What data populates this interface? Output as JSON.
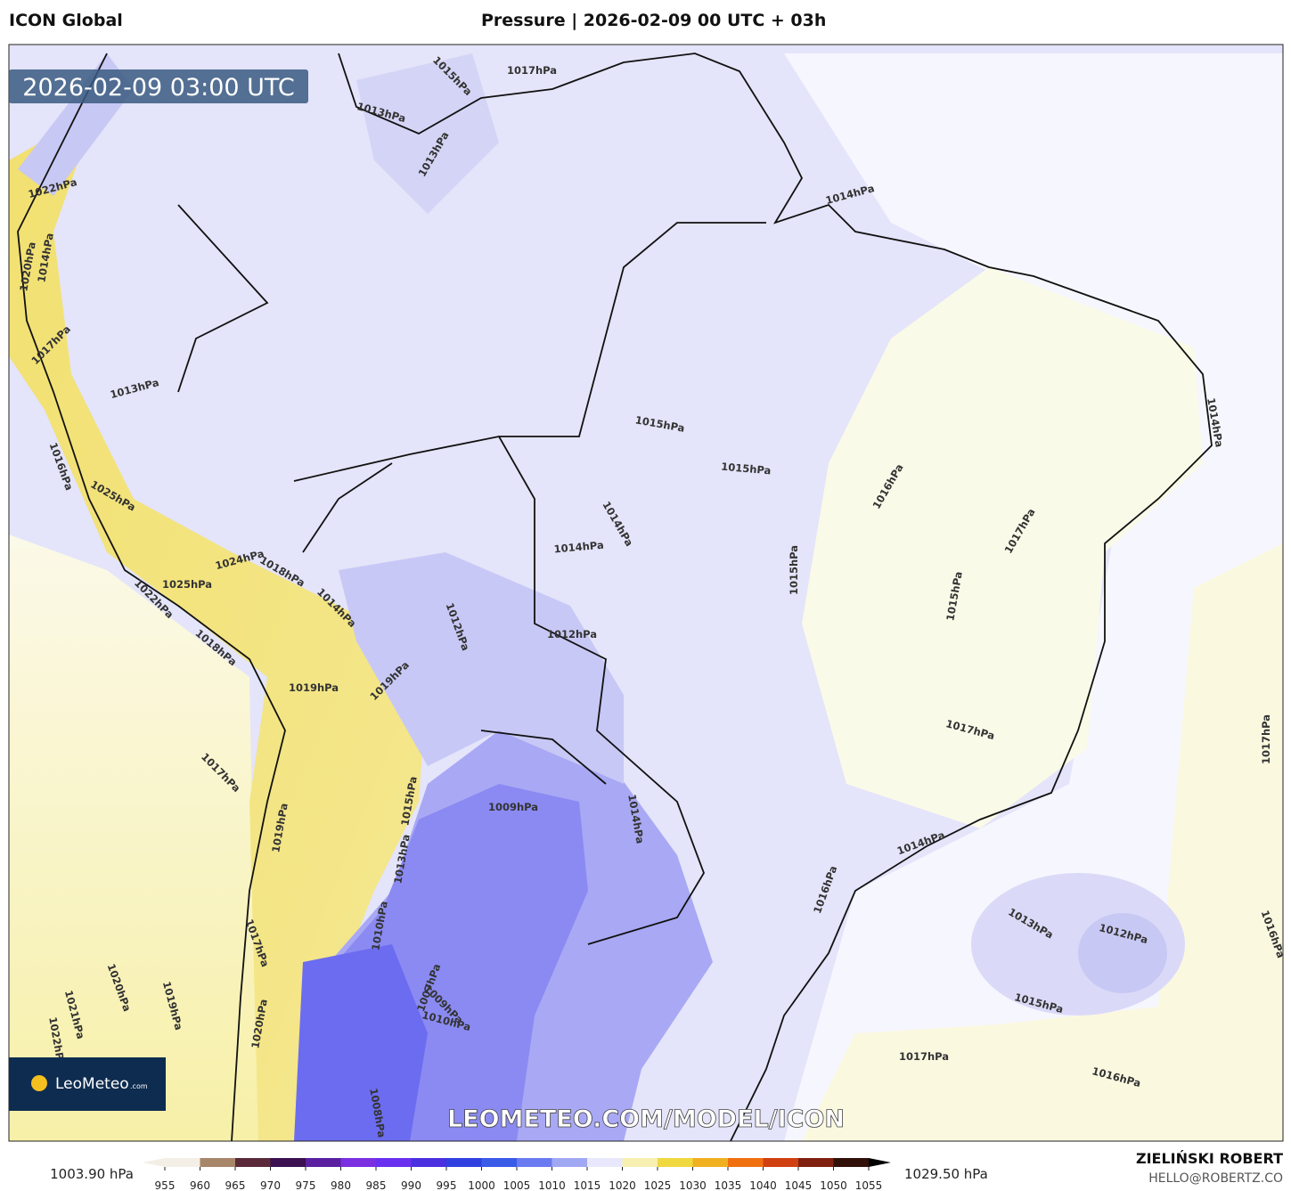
{
  "header": {
    "model": "ICON Global",
    "title": "Pressure | 2026-02-09 00 UTC + 03h"
  },
  "map": {
    "timestamp": "2026-02-09 03:00 UTC",
    "isobar_labels": [
      "1015hPa",
      "1017hPa",
      "1013hPa",
      "1013hPa",
      "1014hPa",
      "1015hPa",
      "1015hPa",
      "1016hPa",
      "1014hPa",
      "1014hPa",
      "1017hPa",
      "1015hPa",
      "1015hPa",
      "1012hPa",
      "1012hPa",
      "1017hPa",
      "1009hPa",
      "1014hPa",
      "1016hPa",
      "1013hPa",
      "1012hPa",
      "1015hPa",
      "1017hPa",
      "1016hPa",
      "1016hPa",
      "1017hPa",
      "1013hPa",
      "1017hPa",
      "1019hPa",
      "1025hPa",
      "1024hPa",
      "1018hPa",
      "1014hPa",
      "1019hPa",
      "1019hPa",
      "1022hPa",
      "1018hPa",
      "1025hPa",
      "1016hPa",
      "1020hPa",
      "1021hPa",
      "1022hPa",
      "1019hPa",
      "1017hPa",
      "1020hPa",
      "1010hPa",
      "1008hPa",
      "1009hPa",
      "1010hPa",
      "1007hPa",
      "1013hPa",
      "1015hPa",
      "1014hPa",
      "1020hPa",
      "1017hPa",
      "1022hPa",
      "1014hPa",
      "1014hPa"
    ],
    "watermark": "LEOMETEO.COM/MODEL/ICON",
    "logo": {
      "name": "LeoMeteo",
      "suffix": ".com"
    }
  },
  "legend": {
    "min_label": "1003.90 hPa",
    "max_label": "1029.50 hPa",
    "ticks": [
      955,
      960,
      965,
      970,
      975,
      980,
      985,
      990,
      995,
      1000,
      1005,
      1010,
      1015,
      1020,
      1025,
      1030,
      1035,
      1040,
      1045,
      1050,
      1055
    ],
    "colors": [
      "#f4efe6",
      "#a8866a",
      "#5a2a3a",
      "#3a1050",
      "#5a20a0",
      "#7a30e0",
      "#6a30f0",
      "#4a30e0",
      "#3040e0",
      "#3a5ae8",
      "#6a7af0",
      "#a0a8f4",
      "#e8e8fc",
      "#f8f0b0",
      "#f0d840",
      "#f0b020",
      "#f07010",
      "#d04010",
      "#802010",
      "#301008",
      "#000000"
    ]
  },
  "credits": {
    "author": "ZIELIŃSKI ROBERT",
    "contact": "HELLO@ROBERTZ.CO"
  }
}
